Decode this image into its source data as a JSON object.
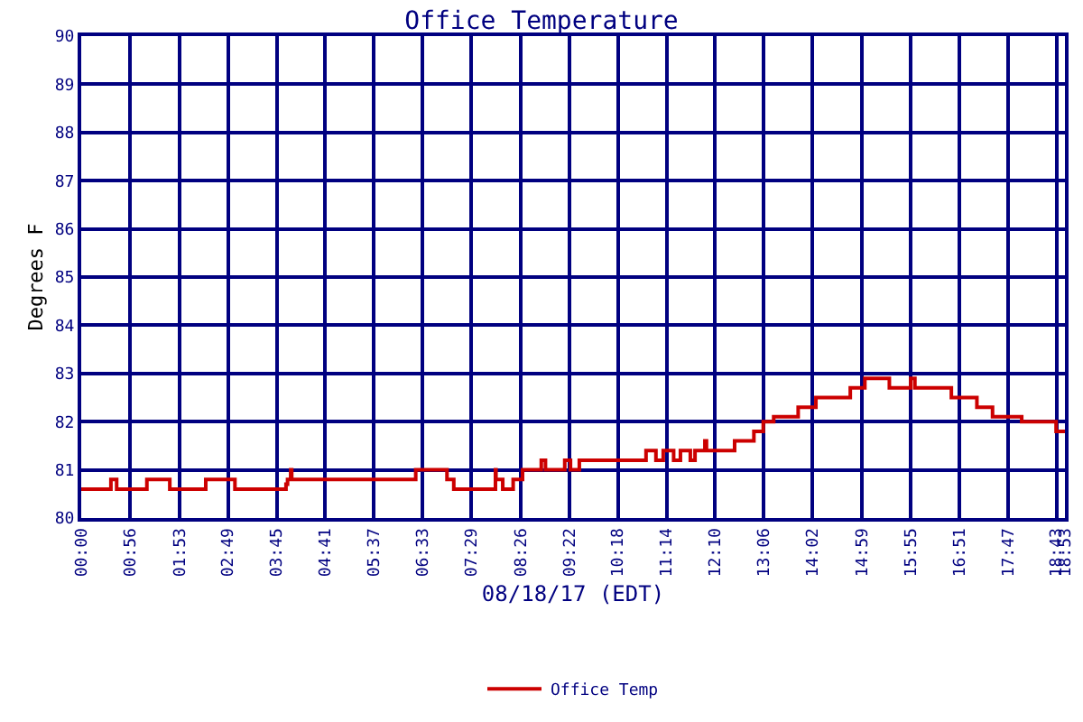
{
  "chart_data": {
    "type": "step",
    "title": "Office Temperature",
    "xlabel": "08/18/17 (EDT)",
    "ylabel": "Degrees F",
    "x": [
      0,
      0.57,
      0.68,
      1.26,
      1.7,
      2.39,
      2.95,
      3.93,
      3.96,
      4.02,
      4.04,
      6.42,
      7.02,
      7.15,
      7.95,
      7.96,
      8.09,
      8.29,
      8.47,
      8.83,
      8.91,
      9.28,
      9.39,
      9.56,
      10.84,
      11.03,
      11.17,
      11.37,
      11.5,
      11.69,
      11.78,
      11.97,
      12.0,
      12.54,
      12.91,
      13.09,
      13.29,
      13.76,
      14.1,
      14.76,
      15.04,
      15.51,
      15.92,
      16.0,
      16.7,
      17.19,
      17.49,
      18.05,
      18.71,
      18.88
    ],
    "series": [
      {
        "name": "Office Temp",
        "color": "#cc0000",
        "values": [
          80.6,
          80.8,
          80.6,
          80.8,
          80.6,
          80.8,
          80.6,
          80.7,
          80.8,
          81.0,
          80.8,
          81.0,
          80.8,
          80.6,
          81.0,
          80.8,
          80.6,
          80.8,
          81.0,
          81.2,
          81.0,
          81.2,
          81.0,
          81.2,
          81.4,
          81.2,
          81.4,
          81.2,
          81.4,
          81.2,
          81.4,
          81.6,
          81.4,
          81.6,
          81.8,
          82.0,
          82.1,
          82.3,
          82.5,
          82.7,
          82.9,
          82.7,
          82.9,
          82.7,
          82.5,
          82.3,
          82.1,
          82.0,
          81.8,
          81.8
        ]
      }
    ],
    "xlim": [
      0,
      18.88
    ],
    "ylim": [
      80,
      90
    ],
    "yticks": [
      80,
      81,
      82,
      83,
      84,
      85,
      86,
      87,
      88,
      89,
      90
    ],
    "xticks": [
      {
        "value": 0,
        "label": "00:00"
      },
      {
        "value": 0.9333,
        "label": "00:56"
      },
      {
        "value": 1.8833,
        "label": "01:53"
      },
      {
        "value": 2.8167,
        "label": "02:49"
      },
      {
        "value": 3.75,
        "label": "03:45"
      },
      {
        "value": 4.6833,
        "label": "04:41"
      },
      {
        "value": 5.6167,
        "label": "05:37"
      },
      {
        "value": 6.55,
        "label": "06:33"
      },
      {
        "value": 7.4833,
        "label": "07:29"
      },
      {
        "value": 8.4333,
        "label": "08:26"
      },
      {
        "value": 9.3667,
        "label": "09:22"
      },
      {
        "value": 10.3,
        "label": "10:18"
      },
      {
        "value": 11.2333,
        "label": "11:14"
      },
      {
        "value": 12.1667,
        "label": "12:10"
      },
      {
        "value": 13.1,
        "label": "13:06"
      },
      {
        "value": 14.0333,
        "label": "14:02"
      },
      {
        "value": 14.9833,
        "label": "14:59"
      },
      {
        "value": 15.9167,
        "label": "15:55"
      },
      {
        "value": 16.85,
        "label": "16:51"
      },
      {
        "value": 17.7833,
        "label": "17:47"
      },
      {
        "value": 18.7167,
        "label": "18:43"
      },
      {
        "value": 18.88,
        "label": "18:53"
      }
    ],
    "grid": true,
    "legend": "bottom",
    "marker": "none",
    "line_style": "solid"
  }
}
